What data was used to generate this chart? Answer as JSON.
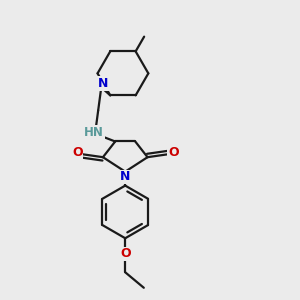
{
  "bg_color": "#ebebeb",
  "bond_color": "#1a1a1a",
  "N_color": "#0000cc",
  "O_color": "#cc0000",
  "NH_color": "#5a9a9a",
  "line_width": 1.6,
  "figsize": [
    3.0,
    3.0
  ],
  "dpi": 100,
  "xlim": [
    0.05,
    0.95
  ],
  "ylim": [
    0.02,
    0.98
  ]
}
